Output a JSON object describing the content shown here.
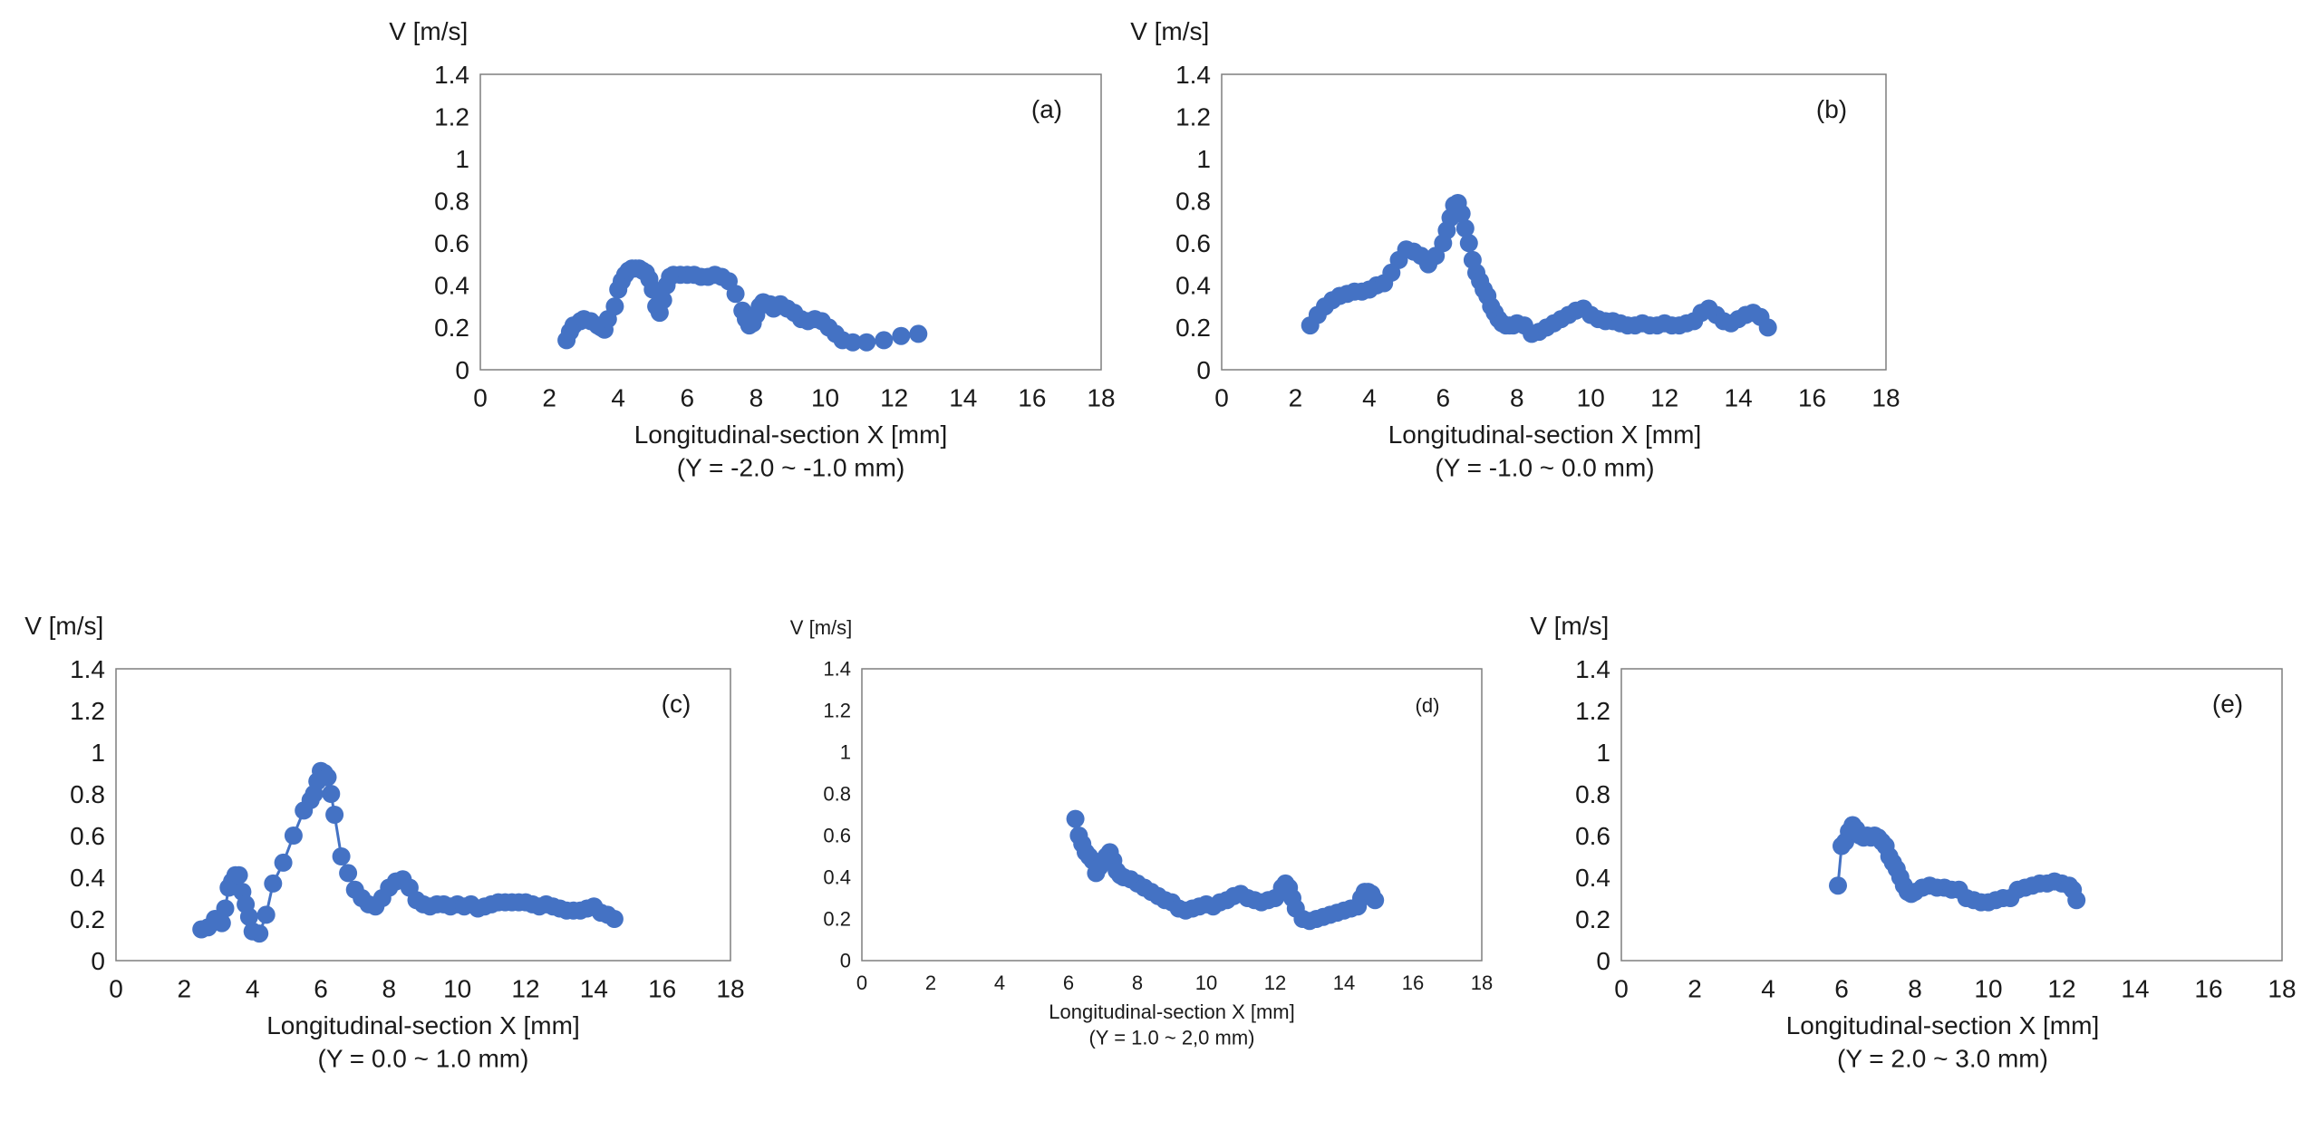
{
  "figure": {
    "marker_color": "#4472c4",
    "axis_color": "#7f7f7f"
  },
  "chart_data": [
    {
      "id": "a",
      "type": "scatter",
      "line": false,
      "panel_label": "(a)",
      "ylabel": "V [m/s]",
      "xlabel": "Longitudinal-section X [mm]",
      "subtitle": "(Y = -2.0 ~ -1.0 mm)",
      "xlim": [
        0,
        18
      ],
      "ylim": [
        0,
        1.4
      ],
      "xticks": [
        0,
        2,
        4,
        6,
        8,
        10,
        12,
        14,
        16,
        18
      ],
      "yticks": [
        0,
        0.2,
        0.4,
        0.6,
        0.8,
        1,
        1.2,
        1.4
      ],
      "x": [
        2.5,
        2.6,
        2.7,
        2.9,
        3.0,
        3.2,
        3.4,
        3.5,
        3.6,
        3.7,
        3.9,
        4.0,
        4.1,
        4.2,
        4.3,
        4.4,
        4.5,
        4.6,
        4.7,
        4.8,
        4.9,
        5.0,
        5.1,
        5.2,
        5.3,
        5.4,
        5.5,
        5.6,
        5.8,
        6.0,
        6.2,
        6.4,
        6.6,
        6.8,
        7.0,
        7.2,
        7.4,
        7.6,
        7.7,
        7.8,
        7.9,
        8.0,
        8.1,
        8.2,
        8.4,
        8.5,
        8.6,
        8.7,
        8.9,
        9.1,
        9.3,
        9.5,
        9.7,
        9.9,
        10.1,
        10.3,
        10.5,
        10.8,
        11.2,
        11.7,
        12.2,
        12.7
      ],
      "y": [
        0.14,
        0.18,
        0.21,
        0.23,
        0.24,
        0.23,
        0.21,
        0.2,
        0.19,
        0.24,
        0.3,
        0.38,
        0.42,
        0.45,
        0.47,
        0.48,
        0.48,
        0.48,
        0.47,
        0.46,
        0.43,
        0.38,
        0.3,
        0.27,
        0.33,
        0.4,
        0.44,
        0.45,
        0.45,
        0.45,
        0.45,
        0.44,
        0.44,
        0.45,
        0.44,
        0.42,
        0.36,
        0.28,
        0.24,
        0.21,
        0.22,
        0.26,
        0.3,
        0.32,
        0.31,
        0.29,
        0.3,
        0.31,
        0.29,
        0.27,
        0.24,
        0.23,
        0.24,
        0.23,
        0.2,
        0.17,
        0.14,
        0.13,
        0.13,
        0.14,
        0.16,
        0.17
      ]
    },
    {
      "id": "b",
      "type": "scatter",
      "line": false,
      "panel_label": "(b)",
      "ylabel": "V [m/s]",
      "xlabel": "Longitudinal-section X [mm]",
      "subtitle": "(Y = -1.0 ~ 0.0 mm)",
      "xlim": [
        0,
        18
      ],
      "ylim": [
        0,
        1.4
      ],
      "xticks": [
        0,
        2,
        4,
        6,
        8,
        10,
        12,
        14,
        16,
        18
      ],
      "yticks": [
        0,
        0.2,
        0.4,
        0.6,
        0.8,
        1,
        1.2,
        1.4
      ],
      "x": [
        2.4,
        2.6,
        2.8,
        3.0,
        3.2,
        3.4,
        3.6,
        3.8,
        4.0,
        4.2,
        4.4,
        4.6,
        4.8,
        5.0,
        5.2,
        5.4,
        5.6,
        5.8,
        6.0,
        6.1,
        6.2,
        6.3,
        6.4,
        6.5,
        6.6,
        6.7,
        6.8,
        6.9,
        7.0,
        7.1,
        7.2,
        7.3,
        7.4,
        7.5,
        7.6,
        7.7,
        7.8,
        7.9,
        8.0,
        8.2,
        8.4,
        8.6,
        8.8,
        9.0,
        9.2,
        9.4,
        9.6,
        9.8,
        10.0,
        10.2,
        10.4,
        10.6,
        10.8,
        11.0,
        11.2,
        11.4,
        11.6,
        11.8,
        12.0,
        12.2,
        12.4,
        12.6,
        12.8,
        13.0,
        13.2,
        13.4,
        13.6,
        13.8,
        14.0,
        14.2,
        14.4,
        14.6,
        14.8
      ],
      "y": [
        0.21,
        0.26,
        0.3,
        0.33,
        0.35,
        0.36,
        0.37,
        0.37,
        0.38,
        0.4,
        0.41,
        0.46,
        0.52,
        0.57,
        0.56,
        0.54,
        0.5,
        0.54,
        0.6,
        0.66,
        0.72,
        0.78,
        0.79,
        0.74,
        0.67,
        0.6,
        0.52,
        0.46,
        0.42,
        0.38,
        0.35,
        0.3,
        0.27,
        0.24,
        0.22,
        0.21,
        0.21,
        0.21,
        0.22,
        0.21,
        0.17,
        0.18,
        0.2,
        0.22,
        0.24,
        0.26,
        0.28,
        0.29,
        0.26,
        0.24,
        0.23,
        0.23,
        0.22,
        0.21,
        0.21,
        0.22,
        0.21,
        0.21,
        0.22,
        0.21,
        0.21,
        0.22,
        0.23,
        0.27,
        0.29,
        0.26,
        0.23,
        0.22,
        0.24,
        0.26,
        0.27,
        0.25,
        0.2
      ]
    },
    {
      "id": "c",
      "type": "line",
      "line": true,
      "panel_label": "(c)",
      "ylabel": "V [m/s]",
      "xlabel": "Longitudinal-section X [mm]",
      "subtitle": "(Y = 0.0 ~ 1.0 mm)",
      "xlim": [
        0,
        18
      ],
      "ylim": [
        0,
        1.4
      ],
      "xticks": [
        0,
        2,
        4,
        6,
        8,
        10,
        12,
        14,
        16,
        18
      ],
      "yticks": [
        0,
        0.2,
        0.4,
        0.6,
        0.8,
        1,
        1.2,
        1.4
      ],
      "x": [
        2.5,
        2.7,
        2.9,
        3.1,
        3.2,
        3.3,
        3.4,
        3.5,
        3.6,
        3.7,
        3.8,
        3.9,
        4.0,
        4.2,
        4.4,
        4.6,
        4.9,
        5.2,
        5.5,
        5.7,
        5.8,
        5.9,
        6.0,
        6.1,
        6.2,
        6.3,
        6.4,
        6.6,
        6.8,
        7.0,
        7.2,
        7.4,
        7.6,
        7.8,
        8.0,
        8.2,
        8.4,
        8.6,
        8.8,
        9.0,
        9.2,
        9.4,
        9.6,
        9.8,
        10.0,
        10.2,
        10.4,
        10.6,
        10.8,
        11.0,
        11.2,
        11.4,
        11.6,
        11.8,
        12.0,
        12.2,
        12.4,
        12.6,
        12.8,
        13.0,
        13.2,
        13.4,
        13.6,
        13.8,
        14.0,
        14.2,
        14.4,
        14.6
      ],
      "y": [
        0.15,
        0.16,
        0.2,
        0.18,
        0.25,
        0.35,
        0.38,
        0.41,
        0.41,
        0.33,
        0.27,
        0.21,
        0.14,
        0.13,
        0.22,
        0.37,
        0.47,
        0.6,
        0.72,
        0.77,
        0.8,
        0.86,
        0.91,
        0.9,
        0.88,
        0.8,
        0.7,
        0.5,
        0.42,
        0.34,
        0.3,
        0.27,
        0.26,
        0.3,
        0.35,
        0.38,
        0.39,
        0.35,
        0.29,
        0.27,
        0.26,
        0.27,
        0.27,
        0.26,
        0.27,
        0.26,
        0.27,
        0.25,
        0.26,
        0.27,
        0.28,
        0.28,
        0.28,
        0.28,
        0.28,
        0.27,
        0.26,
        0.27,
        0.26,
        0.25,
        0.24,
        0.24,
        0.24,
        0.25,
        0.26,
        0.23,
        0.22,
        0.2
      ]
    },
    {
      "id": "d",
      "type": "line",
      "line": true,
      "panel_label": "(d)",
      "ylabel": "V [m/s]",
      "xlabel": "Longitudinal-section X [mm]",
      "subtitle": "(Y = 1.0 ~ 2,0 mm)",
      "xlim": [
        0,
        18
      ],
      "ylim": [
        0,
        1.4
      ],
      "xticks": [
        0,
        2,
        4,
        6,
        8,
        10,
        12,
        14,
        16,
        18
      ],
      "yticks": [
        0,
        0.2,
        0.4,
        0.6,
        0.8,
        1,
        1.2,
        1.4
      ],
      "x": [
        6.2,
        6.3,
        6.4,
        6.5,
        6.6,
        6.7,
        6.8,
        6.9,
        7.0,
        7.1,
        7.2,
        7.3,
        7.4,
        7.5,
        7.6,
        7.8,
        8.0,
        8.2,
        8.4,
        8.6,
        8.8,
        9.0,
        9.2,
        9.4,
        9.6,
        9.8,
        10.0,
        10.2,
        10.4,
        10.6,
        10.8,
        11.0,
        11.2,
        11.4,
        11.6,
        11.8,
        12.0,
        12.2,
        12.3,
        12.4,
        12.5,
        12.6,
        12.8,
        13.0,
        13.2,
        13.4,
        13.6,
        13.8,
        14.0,
        14.2,
        14.4,
        14.5,
        14.6,
        14.7,
        14.8,
        14.9
      ],
      "y": [
        0.68,
        0.6,
        0.56,
        0.52,
        0.5,
        0.48,
        0.42,
        0.45,
        0.48,
        0.5,
        0.52,
        0.48,
        0.43,
        0.41,
        0.4,
        0.39,
        0.37,
        0.35,
        0.33,
        0.31,
        0.29,
        0.28,
        0.25,
        0.24,
        0.25,
        0.26,
        0.27,
        0.26,
        0.28,
        0.29,
        0.31,
        0.32,
        0.3,
        0.29,
        0.28,
        0.29,
        0.3,
        0.35,
        0.37,
        0.35,
        0.3,
        0.25,
        0.2,
        0.19,
        0.2,
        0.21,
        0.22,
        0.23,
        0.24,
        0.25,
        0.26,
        0.3,
        0.33,
        0.33,
        0.32,
        0.29
      ]
    },
    {
      "id": "e",
      "type": "line",
      "line": true,
      "panel_label": "(e)",
      "ylabel": "V [m/s]",
      "xlabel": "Longitudinal-section X [mm]",
      "subtitle": "(Y = 2.0 ~ 3.0 mm)",
      "xlim": [
        0,
        18
      ],
      "ylim": [
        0,
        1.4
      ],
      "xticks": [
        0,
        2,
        4,
        6,
        8,
        10,
        12,
        14,
        16,
        18
      ],
      "yticks": [
        0,
        0.2,
        0.4,
        0.6,
        0.8,
        1,
        1.2,
        1.4
      ],
      "x": [
        5.9,
        6.0,
        6.1,
        6.2,
        6.3,
        6.4,
        6.5,
        6.6,
        6.7,
        6.8,
        6.9,
        7.0,
        7.1,
        7.2,
        7.3,
        7.4,
        7.5,
        7.6,
        7.7,
        7.8,
        7.9,
        8.0,
        8.2,
        8.4,
        8.6,
        8.8,
        9.0,
        9.2,
        9.4,
        9.6,
        9.8,
        10.0,
        10.2,
        10.4,
        10.6,
        10.8,
        11.0,
        11.2,
        11.4,
        11.6,
        11.8,
        12.0,
        12.2,
        12.3,
        12.4
      ],
      "y": [
        0.36,
        0.55,
        0.57,
        0.62,
        0.65,
        0.63,
        0.6,
        0.59,
        0.6,
        0.59,
        0.6,
        0.59,
        0.57,
        0.55,
        0.5,
        0.47,
        0.44,
        0.4,
        0.36,
        0.33,
        0.32,
        0.33,
        0.35,
        0.36,
        0.35,
        0.35,
        0.34,
        0.34,
        0.3,
        0.29,
        0.28,
        0.28,
        0.29,
        0.3,
        0.3,
        0.34,
        0.35,
        0.36,
        0.37,
        0.37,
        0.38,
        0.37,
        0.36,
        0.34,
        0.29
      ]
    }
  ]
}
